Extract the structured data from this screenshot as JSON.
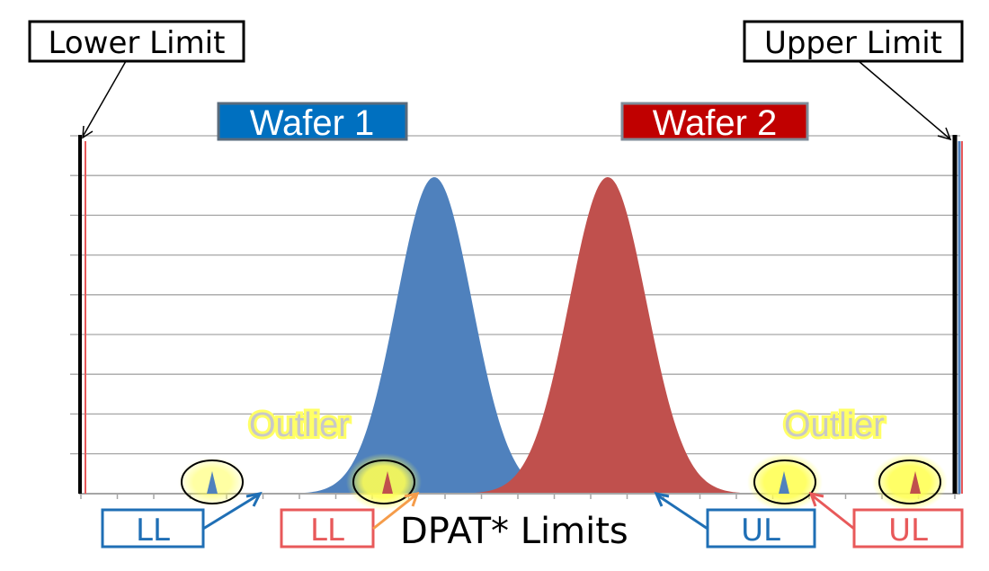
{
  "labels": {
    "lower_limit": "Lower Limit",
    "upper_limit": "Upper Limit",
    "wafer1": "Wafer 1",
    "wafer2": "Wafer 2",
    "outlier_left": "Outlier",
    "outlier_right": "Outlier",
    "ll_blue": "LL",
    "ll_red": "LL",
    "ul_blue": "UL",
    "ul_red": "UL",
    "dpat_caption": "DPAT* Limits"
  },
  "colors": {
    "wafer1": "#4F81BD",
    "wafer1_box": "#0070C0",
    "wafer2": "#C0504D",
    "wafer2_box": "#C00000",
    "ll_ul_blue": "#1F6FB5",
    "ll_ul_red": "#E8595A",
    "outlier_glow": "#FFFF66",
    "outlier_text": "#C8C8C8",
    "grid": "#A6A6A6",
    "limit_line": "#000000"
  }
}
